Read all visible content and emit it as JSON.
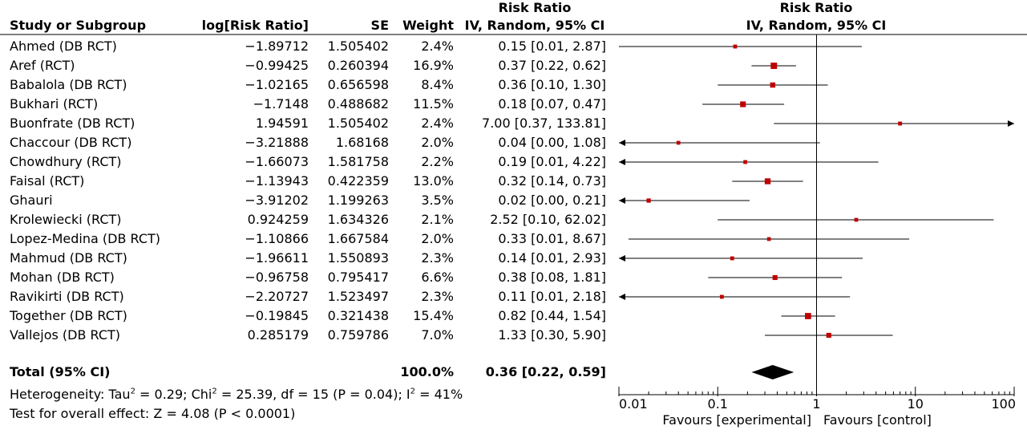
{
  "chart_data": {
    "type": "forest",
    "headers": {
      "study": "Study or Subgroup",
      "log_rr": "log[Risk Ratio]",
      "se": "SE",
      "weight": "Weight",
      "rr_top": "Risk Ratio",
      "rr_bottom": "IV, Random, 95% CI",
      "plot_top": "Risk Ratio",
      "plot_bottom": "IV, Random, 95% CI"
    },
    "studies": [
      {
        "name": "Ahmed (DB RCT)",
        "log_rr": "−1.89712",
        "se": "1.505402",
        "weight": "2.4%",
        "ci_text": "0.15 [0.01, 2.87]",
        "rr": 0.15,
        "lo": 0.01,
        "hi": 2.87,
        "w": 2.4
      },
      {
        "name": "Aref (RCT)",
        "log_rr": "−0.99425",
        "se": "0.260394",
        "weight": "16.9%",
        "ci_text": "0.37 [0.22, 0.62]",
        "rr": 0.37,
        "lo": 0.22,
        "hi": 0.62,
        "w": 16.9
      },
      {
        "name": "Babalola (DB RCT)",
        "log_rr": "−1.02165",
        "se": "0.656598",
        "weight": "8.4%",
        "ci_text": "0.36 [0.10, 1.30]",
        "rr": 0.36,
        "lo": 0.1,
        "hi": 1.3,
        "w": 8.4
      },
      {
        "name": "Bukhari (RCT)",
        "log_rr": "−1.7148",
        "se": "0.488682",
        "weight": "11.5%",
        "ci_text": "0.18 [0.07, 0.47]",
        "rr": 0.18,
        "lo": 0.07,
        "hi": 0.47,
        "w": 11.5
      },
      {
        "name": "Buonfrate (DB RCT)",
        "log_rr": "1.94591",
        "se": "1.505402",
        "weight": "2.4%",
        "ci_text": "7.00 [0.37, 133.81]",
        "rr": 7.0,
        "lo": 0.37,
        "hi": 133.81,
        "w": 2.4
      },
      {
        "name": "Chaccour (DB RCT)",
        "log_rr": "−3.21888",
        "se": "1.68168",
        "weight": "2.0%",
        "ci_text": "0.04 [0.00, 1.08]",
        "rr": 0.04,
        "lo": 0.0015,
        "hi": 1.08,
        "w": 2.0
      },
      {
        "name": "Chowdhury (RCT)",
        "log_rr": "−1.66073",
        "se": "1.581758",
        "weight": "2.2%",
        "ci_text": "0.19 [0.01, 4.22]",
        "rr": 0.19,
        "lo": 0.008,
        "hi": 4.22,
        "w": 2.2
      },
      {
        "name": "Faisal (RCT)",
        "log_rr": "−1.13943",
        "se": "0.422359",
        "weight": "13.0%",
        "ci_text": "0.32 [0.14, 0.73]",
        "rr": 0.32,
        "lo": 0.14,
        "hi": 0.73,
        "w": 13.0
      },
      {
        "name": "Ghauri",
        "log_rr": "−3.91202",
        "se": "1.199263",
        "weight": "3.5%",
        "ci_text": "0.02 [0.00, 0.21]",
        "rr": 0.02,
        "lo": 0.0019,
        "hi": 0.21,
        "w": 3.5
      },
      {
        "name": "Krolewiecki (RCT)",
        "log_rr": "0.924259",
        "se": "1.634326",
        "weight": "2.1%",
        "ci_text": "2.52 [0.10, 62.02]",
        "rr": 2.52,
        "lo": 0.1,
        "hi": 62.02,
        "w": 2.1
      },
      {
        "name": "Lopez-Medina (DB RCT)",
        "log_rr": "−1.10866",
        "se": "1.667584",
        "weight": "2.0%",
        "ci_text": "0.33 [0.01, 8.67]",
        "rr": 0.33,
        "lo": 0.0125,
        "hi": 8.67,
        "w": 2.0
      },
      {
        "name": "Mahmud (DB RCT)",
        "log_rr": "−1.96611",
        "se": "1.550893",
        "weight": "2.3%",
        "ci_text": "0.14 [0.01, 2.93]",
        "rr": 0.14,
        "lo": 0.007,
        "hi": 2.93,
        "w": 2.3
      },
      {
        "name": "Mohan (DB RCT)",
        "log_rr": "−0.96758",
        "se": "0.795417",
        "weight": "6.6%",
        "ci_text": "0.38 [0.08, 1.81]",
        "rr": 0.38,
        "lo": 0.08,
        "hi": 1.81,
        "w": 6.6
      },
      {
        "name": "Ravikirti (DB RCT)",
        "log_rr": "−2.20727",
        "se": "1.523497",
        "weight": "2.3%",
        "ci_text": "0.11 [0.01, 2.18]",
        "rr": 0.11,
        "lo": 0.0056,
        "hi": 2.18,
        "w": 2.3
      },
      {
        "name": "Together (DB RCT)",
        "log_rr": "−0.19845",
        "se": "0.321438",
        "weight": "15.4%",
        "ci_text": "0.82 [0.44, 1.54]",
        "rr": 0.82,
        "lo": 0.44,
        "hi": 1.54,
        "w": 15.4
      },
      {
        "name": "Vallejos (DB RCT)",
        "log_rr": "0.285179",
        "se": "0.759786",
        "weight": "7.0%",
        "ci_text": "1.33 [0.30, 5.90]",
        "rr": 1.33,
        "lo": 0.3,
        "hi": 5.9,
        "w": 7.0
      }
    ],
    "total": {
      "label": "Total (95% CI)",
      "weight": "100.0%",
      "ci_text": "0.36 [0.22, 0.59]",
      "rr": 0.36,
      "lo": 0.22,
      "hi": 0.59
    },
    "heterogeneity": {
      "prefix": "Heterogeneity: Tau",
      "tau2": " = 0.29; Chi",
      "chi2": " = 25.39, df = 15 (P = 0.04); I",
      "i2": " = 41%",
      "sup": "2"
    },
    "overall_effect": "Test for overall effect: Z = 4.08 (P < 0.0001)",
    "axis": {
      "scale": "log",
      "range": [
        0.01,
        100
      ],
      "ticks": [
        0.01,
        0.1,
        1,
        10,
        100
      ],
      "tick_labels": [
        "0.01",
        "0.1",
        "1",
        "10",
        "100"
      ]
    },
    "favours_left": "Favours [experimental]",
    "favours_right": "Favours [control]",
    "colors": {
      "marker": "#c00000",
      "line": "#000000"
    }
  }
}
